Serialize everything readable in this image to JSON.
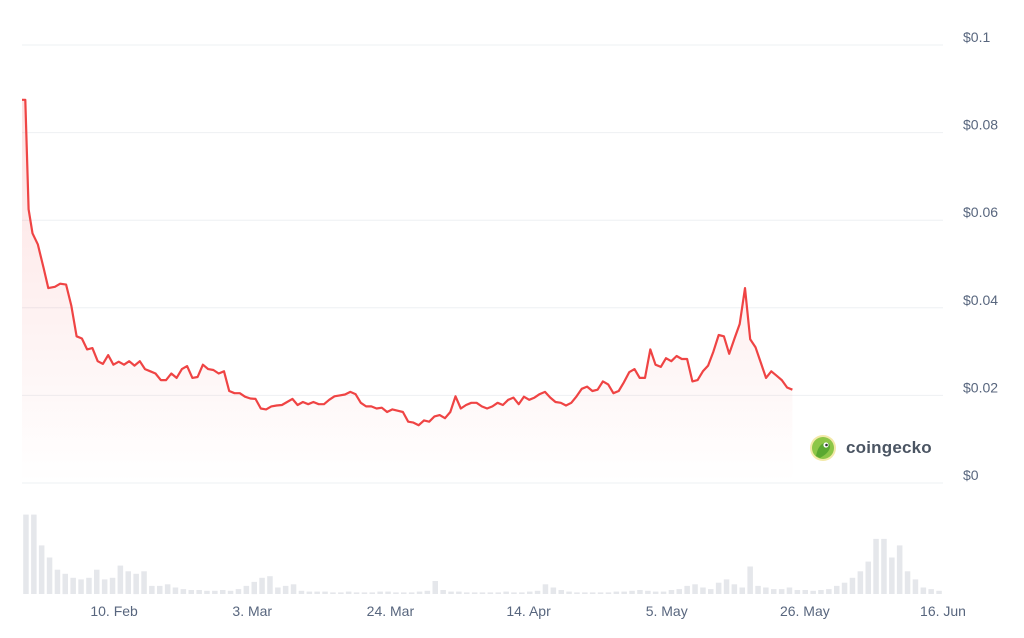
{
  "colors": {
    "price_line": "#ef4444",
    "area_fill": "#ef4444",
    "volume_bar": "#e5e7eb",
    "grid": "#eef0f3",
    "tick_text": "#58667e",
    "logo_badge": "#8dc647"
  },
  "brand": {
    "name": "coingecko",
    "icon": "gecko-logo-icon"
  },
  "chart_data": {
    "type": "area",
    "x_ticks": [
      "10. Feb",
      "3. Mar",
      "24. Mar",
      "14. Apr",
      "5. May",
      "26. May",
      "16. Jun"
    ],
    "y_ticks": [
      "$0",
      "$0.02",
      "$0.04",
      "$0.06",
      "$0.08",
      "$0.1"
    ],
    "ylim": [
      0,
      0.1
    ],
    "x_range_days": [
      0,
      140
    ],
    "x_tick_days": [
      14,
      35,
      56,
      77,
      98,
      119,
      140
    ],
    "grid": true,
    "series": [
      {
        "values": [
          [
            0,
            0.0875
          ],
          [
            0.5,
            0.0875
          ],
          [
            1,
            0.0625
          ],
          [
            1.6,
            0.057
          ],
          [
            2.4,
            0.0545
          ],
          [
            3.3,
            0.049
          ],
          [
            4,
            0.0445
          ],
          [
            5,
            0.0448
          ],
          [
            5.8,
            0.0455
          ],
          [
            6.7,
            0.0453
          ],
          [
            7.5,
            0.0405
          ],
          [
            8.3,
            0.0335
          ],
          [
            9.1,
            0.033
          ],
          [
            9.9,
            0.0305
          ],
          [
            10.7,
            0.0308
          ],
          [
            11.5,
            0.0278
          ],
          [
            12.3,
            0.0272
          ],
          [
            13.1,
            0.0292
          ],
          [
            13.9,
            0.027
          ],
          [
            14.7,
            0.0277
          ],
          [
            15.5,
            0.027
          ],
          [
            16.3,
            0.0278
          ],
          [
            17.1,
            0.0268
          ],
          [
            17.9,
            0.0278
          ],
          [
            18.7,
            0.026
          ],
          [
            19.5,
            0.0255
          ],
          [
            20.3,
            0.025
          ],
          [
            21.1,
            0.0235
          ],
          [
            21.9,
            0.0235
          ],
          [
            22.7,
            0.025
          ],
          [
            23.5,
            0.024
          ],
          [
            24.3,
            0.026
          ],
          [
            25.1,
            0.0267
          ],
          [
            25.9,
            0.024
          ],
          [
            26.7,
            0.0242
          ],
          [
            27.5,
            0.027
          ],
          [
            28.3,
            0.026
          ],
          [
            29.1,
            0.0258
          ],
          [
            29.9,
            0.025
          ],
          [
            30.7,
            0.0255
          ],
          [
            31.5,
            0.021
          ],
          [
            32.3,
            0.0205
          ],
          [
            33.1,
            0.0205
          ],
          [
            33.9,
            0.0197
          ],
          [
            34.7,
            0.0193
          ],
          [
            35.5,
            0.0192
          ],
          [
            36.3,
            0.017
          ],
          [
            37.1,
            0.0168
          ],
          [
            37.9,
            0.0175
          ],
          [
            38.7,
            0.0177
          ],
          [
            39.5,
            0.0178
          ],
          [
            40.3,
            0.0185
          ],
          [
            41.1,
            0.0192
          ],
          [
            41.9,
            0.0178
          ],
          [
            42.7,
            0.0185
          ],
          [
            43.5,
            0.018
          ],
          [
            44.3,
            0.0185
          ],
          [
            45.1,
            0.018
          ],
          [
            45.9,
            0.018
          ],
          [
            46.7,
            0.019
          ],
          [
            47.5,
            0.0198
          ],
          [
            48.3,
            0.02
          ],
          [
            49.1,
            0.0202
          ],
          [
            49.9,
            0.0208
          ],
          [
            50.7,
            0.0203
          ],
          [
            51.5,
            0.0183
          ],
          [
            52.3,
            0.0175
          ],
          [
            53.1,
            0.0175
          ],
          [
            53.9,
            0.017
          ],
          [
            54.7,
            0.0172
          ],
          [
            55.5,
            0.0162
          ],
          [
            56.3,
            0.0168
          ],
          [
            57.1,
            0.0165
          ],
          [
            57.9,
            0.0162
          ],
          [
            58.7,
            0.014
          ],
          [
            59.5,
            0.0138
          ],
          [
            60.3,
            0.0132
          ],
          [
            61.1,
            0.0143
          ],
          [
            61.9,
            0.014
          ],
          [
            62.7,
            0.0152
          ],
          [
            63.5,
            0.0155
          ],
          [
            64.3,
            0.0148
          ],
          [
            65.1,
            0.0162
          ],
          [
            65.9,
            0.0198
          ],
          [
            66.7,
            0.017
          ],
          [
            67.5,
            0.0178
          ],
          [
            68.3,
            0.0183
          ],
          [
            69.1,
            0.0183
          ],
          [
            69.9,
            0.0175
          ],
          [
            70.7,
            0.017
          ],
          [
            71.5,
            0.0175
          ],
          [
            72.3,
            0.0183
          ],
          [
            73.1,
            0.0178
          ],
          [
            73.9,
            0.019
          ],
          [
            74.7,
            0.0195
          ],
          [
            75.5,
            0.018
          ],
          [
            76.3,
            0.0197
          ],
          [
            77.1,
            0.019
          ],
          [
            77.9,
            0.0195
          ],
          [
            78.7,
            0.0203
          ],
          [
            79.5,
            0.0208
          ],
          [
            80.3,
            0.0195
          ],
          [
            81.1,
            0.0185
          ],
          [
            81.9,
            0.0183
          ],
          [
            82.7,
            0.0177
          ],
          [
            83.5,
            0.0183
          ],
          [
            84.3,
            0.0198
          ],
          [
            85.1,
            0.0215
          ],
          [
            85.9,
            0.022
          ],
          [
            86.7,
            0.021
          ],
          [
            87.5,
            0.0213
          ],
          [
            88.3,
            0.0232
          ],
          [
            89.1,
            0.0225
          ],
          [
            89.9,
            0.0205
          ],
          [
            90.7,
            0.021
          ],
          [
            91.5,
            0.023
          ],
          [
            92.3,
            0.0253
          ],
          [
            93.1,
            0.026
          ],
          [
            93.9,
            0.024
          ],
          [
            94.7,
            0.024
          ],
          [
            95.5,
            0.0305
          ],
          [
            96.3,
            0.027
          ],
          [
            97.1,
            0.0265
          ],
          [
            97.9,
            0.0285
          ],
          [
            98.7,
            0.0278
          ],
          [
            99.5,
            0.029
          ],
          [
            100.3,
            0.0283
          ],
          [
            101.1,
            0.0283
          ],
          [
            101.9,
            0.0232
          ],
          [
            102.7,
            0.0235
          ],
          [
            103.5,
            0.0255
          ],
          [
            104.3,
            0.0268
          ],
          [
            105.1,
            0.03
          ],
          [
            105.9,
            0.0338
          ],
          [
            106.7,
            0.0335
          ],
          [
            107.5,
            0.0295
          ],
          [
            108.3,
            0.033
          ],
          [
            109.1,
            0.0363
          ],
          [
            109.9,
            0.0445
          ],
          [
            110.7,
            0.0328
          ],
          [
            111.5,
            0.031
          ],
          [
            112.3,
            0.0275
          ],
          [
            113.1,
            0.024
          ],
          [
            113.9,
            0.0255
          ],
          [
            114.7,
            0.0245
          ],
          [
            115.5,
            0.0235
          ],
          [
            116.3,
            0.0218
          ],
          [
            117.1,
            0.0213
          ]
        ]
      }
    ],
    "volume": [
      0.98,
      0.98,
      0.6,
      0.45,
      0.3,
      0.25,
      0.2,
      0.18,
      0.2,
      0.3,
      0.18,
      0.2,
      0.35,
      0.28,
      0.25,
      0.28,
      0.1,
      0.1,
      0.12,
      0.08,
      0.06,
      0.05,
      0.05,
      0.04,
      0.04,
      0.05,
      0.04,
      0.06,
      0.1,
      0.15,
      0.2,
      0.22,
      0.08,
      0.1,
      0.12,
      0.04,
      0.03,
      0.03,
      0.03,
      0.02,
      0.02,
      0.03,
      0.02,
      0.02,
      0.02,
      0.03,
      0.03,
      0.02,
      0.02,
      0.02,
      0.03,
      0.04,
      0.16,
      0.05,
      0.03,
      0.03,
      0.02,
      0.02,
      0.02,
      0.02,
      0.02,
      0.03,
      0.02,
      0.02,
      0.03,
      0.04,
      0.12,
      0.08,
      0.05,
      0.03,
      0.02,
      0.02,
      0.02,
      0.02,
      0.02,
      0.03,
      0.03,
      0.04,
      0.05,
      0.04,
      0.03,
      0.03,
      0.05,
      0.06,
      0.1,
      0.12,
      0.08,
      0.06,
      0.14,
      0.18,
      0.12,
      0.08,
      0.34,
      0.1,
      0.08,
      0.06,
      0.06,
      0.08,
      0.05,
      0.05,
      0.04,
      0.05,
      0.06,
      0.1,
      0.14,
      0.2,
      0.28,
      0.4,
      0.68,
      0.68,
      0.45,
      0.6,
      0.28,
      0.18,
      0.08,
      0.06,
      0.04
    ]
  }
}
